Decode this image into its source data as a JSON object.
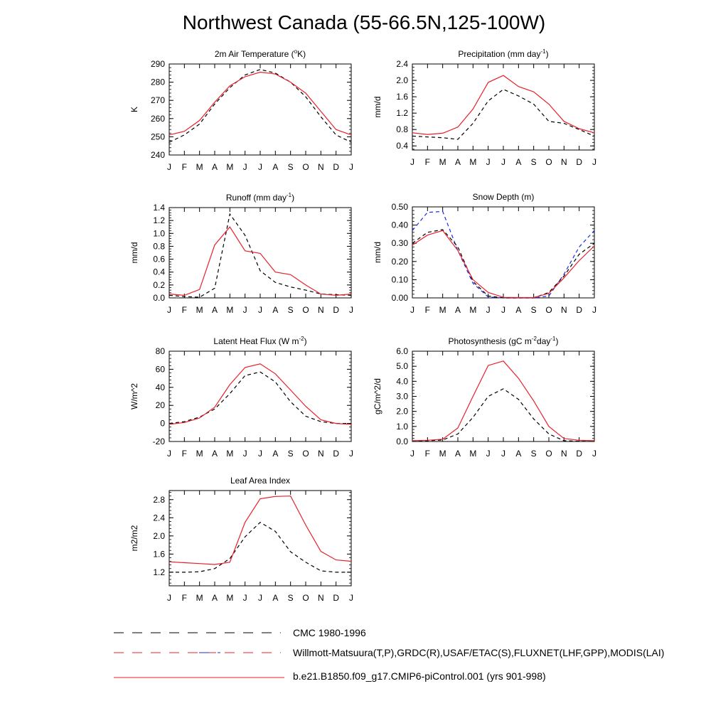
{
  "title": "Northwest Canada (55-66.5N,125-100W)",
  "colors": {
    "model": "#e8202a",
    "obs": "#000000",
    "alt_obs": "#1a2be0",
    "axis": "#000000"
  },
  "legend": [
    {
      "label": "CMC 1980-1996",
      "style": "dashed-black"
    },
    {
      "label": "Willmott-Matsuura(T,P),GRDC(R),USAF/ETAC(S),FLUXNET(LHF,GPP),MODIS(LAI)",
      "style": "dashed-red-blue"
    },
    {
      "label": "b.e21.B1850.f09_g17.CMIP6-piControl.001 (yrs 901-998)",
      "style": "solid-red"
    }
  ],
  "chart_data": [
    {
      "type": "line",
      "title": "2m Air Temperature (°K)",
      "title_main": "2m Air Temperature (",
      "title_sup": "o",
      "title_end": "K)",
      "ylabel": "K",
      "categories": [
        "J",
        "F",
        "M",
        "A",
        "M",
        "J",
        "J",
        "A",
        "S",
        "O",
        "N",
        "D",
        "J"
      ],
      "ylim": [
        240,
        290
      ],
      "yticks": [
        240,
        250,
        260,
        270,
        280,
        290
      ],
      "ytick_labels": [
        "240",
        "250",
        "260",
        "270",
        "280",
        "290"
      ],
      "series": [
        {
          "name": "obs",
          "style": "dashed-black",
          "values": [
            247,
            251,
            257,
            268,
            277,
            284,
            287,
            285,
            280,
            272,
            261,
            251,
            247
          ]
        },
        {
          "name": "model",
          "style": "solid-red",
          "values": [
            251,
            253,
            259,
            269,
            278,
            283,
            285.5,
            284.5,
            280,
            274,
            264,
            254,
            251
          ]
        }
      ]
    },
    {
      "type": "line",
      "title": "Precipitation (mm day-1)",
      "title_main": "Precipitation (mm day",
      "title_sup": "-1",
      "title_end": ")",
      "ylabel": "mm/d",
      "categories": [
        "J",
        "F",
        "M",
        "A",
        "M",
        "J",
        "J",
        "A",
        "S",
        "O",
        "N",
        "D",
        "J"
      ],
      "ylim": [
        0.3,
        2.4
      ],
      "yticks": [
        0.4,
        0.8,
        1.2,
        1.6,
        2.0,
        2.4
      ],
      "ytick_labels": [
        "0.4",
        "0.8",
        "1.2",
        "1.6",
        "2.0",
        "2.4"
      ],
      "series": [
        {
          "name": "obs",
          "style": "dashed-black",
          "values": [
            0.64,
            0.62,
            0.6,
            0.56,
            0.95,
            1.5,
            1.78,
            1.62,
            1.42,
            1.0,
            0.95,
            0.8,
            0.64
          ]
        },
        {
          "name": "model",
          "style": "solid-red",
          "values": [
            0.72,
            0.68,
            0.71,
            0.86,
            1.3,
            1.95,
            2.12,
            1.85,
            1.72,
            1.42,
            1.0,
            0.82,
            0.72
          ]
        }
      ]
    },
    {
      "type": "line",
      "title": "Runoff (mm day-1)",
      "title_main": "Runoff (mm day",
      "title_sup": "-1",
      "title_end": ")",
      "ylabel": "mm/d",
      "categories": [
        "J",
        "F",
        "M",
        "A",
        "M",
        "J",
        "J",
        "A",
        "S",
        "O",
        "N",
        "D",
        "J"
      ],
      "ylim": [
        0,
        1.4
      ],
      "yticks": [
        0,
        0.2,
        0.4,
        0.6,
        0.8,
        1.0,
        1.2,
        1.4
      ],
      "ytick_labels": [
        "0.0",
        "0.2",
        "0.4",
        "0.6",
        "0.8",
        "1.0",
        "1.2",
        "1.4"
      ],
      "series": [
        {
          "name": "obs",
          "style": "dashed-black",
          "values": [
            0.04,
            0.02,
            0.01,
            0.15,
            1.3,
            0.97,
            0.42,
            0.24,
            0.17,
            0.12,
            0.06,
            0.05,
            0.04
          ]
        },
        {
          "name": "model",
          "style": "solid-red",
          "values": [
            0.06,
            0.04,
            0.13,
            0.82,
            1.1,
            0.73,
            0.69,
            0.4,
            0.36,
            0.2,
            0.06,
            0.04,
            0.06
          ]
        }
      ]
    },
    {
      "type": "line",
      "title": "Snow Depth (m)",
      "title_main": "Snow Depth (m)",
      "title_sup": "",
      "title_end": "",
      "ylabel": "mm/d",
      "categories": [
        "J",
        "F",
        "M",
        "A",
        "M",
        "J",
        "J",
        "A",
        "S",
        "O",
        "N",
        "D",
        "J"
      ],
      "ylim": [
        0,
        0.5
      ],
      "yticks": [
        0,
        0.1,
        0.2,
        0.3,
        0.4,
        0.5
      ],
      "ytick_labels": [
        "0.00",
        "0.10",
        "0.20",
        "0.30",
        "0.40",
        "0.50"
      ],
      "series": [
        {
          "name": "obs-alt",
          "style": "dashed-blue",
          "values": [
            0.37,
            0.47,
            0.475,
            0.26,
            0.08,
            0.005,
            0.0,
            0.0,
            0.0,
            0.01,
            0.13,
            0.28,
            0.37
          ]
        },
        {
          "name": "obs",
          "style": "dashed-black",
          "values": [
            0.3,
            0.36,
            0.375,
            0.28,
            0.09,
            0.01,
            0.0,
            0.0,
            0.0,
            0.03,
            0.12,
            0.24,
            0.3
          ]
        },
        {
          "name": "model",
          "style": "solid-red",
          "values": [
            0.29,
            0.345,
            0.37,
            0.26,
            0.1,
            0.03,
            0.003,
            0.002,
            0.002,
            0.025,
            0.11,
            0.205,
            0.285
          ]
        }
      ]
    },
    {
      "type": "line",
      "title": "Latent Heat Flux (W m-2)",
      "title_main": "Latent Heat Flux (W m",
      "title_sup": "-2",
      "title_end": ")",
      "ylabel": "W/m^2",
      "categories": [
        "J",
        "F",
        "M",
        "A",
        "M",
        "J",
        "J",
        "A",
        "S",
        "O",
        "N",
        "D",
        "J"
      ],
      "ylim": [
        -20,
        80
      ],
      "yticks": [
        -20,
        0,
        20,
        40,
        60,
        80
      ],
      "ytick_labels": [
        "-20",
        "0",
        "20",
        "40",
        "60",
        "80"
      ],
      "series": [
        {
          "name": "obs",
          "style": "dashed-black",
          "values": [
            0,
            2,
            7,
            16,
            33,
            53,
            57,
            46,
            24,
            8,
            2,
            0,
            0
          ]
        },
        {
          "name": "model",
          "style": "solid-red",
          "values": [
            -1,
            1,
            6,
            18,
            43,
            62,
            66,
            55,
            37,
            19,
            4,
            0,
            -1
          ]
        }
      ]
    },
    {
      "type": "line",
      "title": "Photosynthesis (gC m-2day-1)",
      "title_main": "Photosynthesis (gC m",
      "title_sup": "-2",
      "title_mid": "day",
      "title_sup2": "-1",
      "title_end": ")",
      "ylabel": "gC/m^2/d",
      "categories": [
        "J",
        "F",
        "M",
        "A",
        "M",
        "J",
        "J",
        "A",
        "S",
        "O",
        "N",
        "D",
        "J"
      ],
      "ylim": [
        0,
        6
      ],
      "yticks": [
        0,
        1,
        2,
        3,
        4,
        5,
        6
      ],
      "ytick_labels": [
        "0.0",
        "1.0",
        "2.0",
        "3.0",
        "4.0",
        "5.0",
        "6.0"
      ],
      "series": [
        {
          "name": "obs",
          "style": "dashed-black",
          "values": [
            0.0,
            0.05,
            0.1,
            0.5,
            1.6,
            3.0,
            3.5,
            2.8,
            1.5,
            0.5,
            0.05,
            0.02,
            0.0
          ]
        },
        {
          "name": "model",
          "style": "solid-red",
          "values": [
            0.05,
            0.08,
            0.15,
            0.9,
            3.0,
            5.05,
            5.35,
            4.2,
            2.7,
            1.0,
            0.2,
            0.08,
            0.05
          ]
        }
      ]
    },
    {
      "type": "line",
      "title": "Leaf Area Index",
      "title_main": "Leaf Area Index",
      "title_sup": "",
      "title_end": "",
      "ylabel": "m2/m2",
      "categories": [
        "J",
        "F",
        "M",
        "A",
        "M",
        "J",
        "J",
        "A",
        "S",
        "O",
        "N",
        "D",
        "J"
      ],
      "ylim": [
        0.9,
        3.0
      ],
      "yticks": [
        1.2,
        1.6,
        2.0,
        2.4,
        2.8
      ],
      "ytick_labels": [
        "1.2",
        "1.6",
        "2.0",
        "2.4",
        "2.8"
      ],
      "series": [
        {
          "name": "obs",
          "style": "dashed-black",
          "values": [
            1.2,
            1.2,
            1.21,
            1.28,
            1.5,
            1.98,
            2.3,
            2.1,
            1.65,
            1.42,
            1.23,
            1.2,
            1.2
          ]
        },
        {
          "name": "model",
          "style": "solid-red",
          "values": [
            1.43,
            1.41,
            1.39,
            1.37,
            1.42,
            2.3,
            2.82,
            2.87,
            2.88,
            2.24,
            1.66,
            1.47,
            1.44
          ]
        }
      ]
    }
  ]
}
